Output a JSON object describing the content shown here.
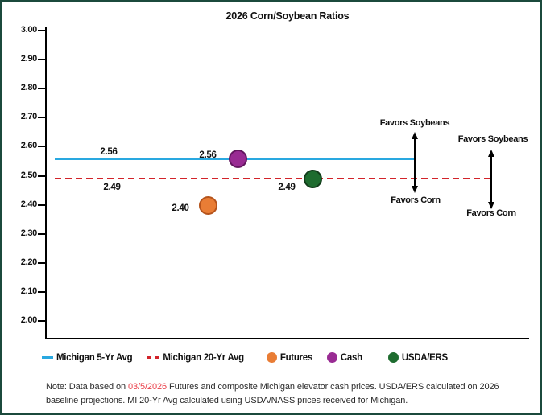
{
  "frame": {
    "border_color": "#1B4A3C",
    "background": "#FFFFFF"
  },
  "chart_data": {
    "type": "scatter",
    "title": "2026 Corn/Soybean Ratios",
    "xlabel": "",
    "ylabel": "",
    "ylim": [
      2.0,
      3.0
    ],
    "ytick_step": 0.1,
    "yticks": [
      "3.00",
      "2.90",
      "2.80",
      "2.70",
      "2.60",
      "2.50",
      "2.40",
      "2.30",
      "2.20",
      "2.10",
      "2.00"
    ],
    "grid": false,
    "legend_position": "bottom",
    "reference_lines": [
      {
        "name": "Michigan 5-Yr Avg",
        "value": 2.56,
        "label": "2.56",
        "style": "solid",
        "color": "#29A8E0"
      },
      {
        "name": "Michigan 20-Yr Avg",
        "value": 2.49,
        "label": "2.49",
        "style": "dashed",
        "color": "#D2232A"
      }
    ],
    "points": [
      {
        "name": "Futures",
        "value": 2.4,
        "label": "2.40",
        "color": "#E97D35",
        "stroke": "#B5531B"
      },
      {
        "name": "Cash",
        "value": 2.56,
        "label": "2.56",
        "color": "#992B93",
        "stroke": "#63165F"
      },
      {
        "name": "USDA/ERS",
        "value": 2.49,
        "label": "2.49",
        "color": "#1E6C2F",
        "stroke": "#123D1B"
      }
    ],
    "annotations": [
      {
        "above": "Favors Soybeans",
        "below": "Favors Corn"
      },
      {
        "above": "Favors Soybeans",
        "below": "Favors Corn"
      }
    ]
  },
  "legend": {
    "items": [
      {
        "label": "Michigan 5-Yr Avg",
        "swatch": "line-solid",
        "color": "#29A8E0"
      },
      {
        "label": "Michigan 20-Yr Avg",
        "swatch": "line-dashed",
        "color": "#D2232A"
      },
      {
        "label": "Futures",
        "swatch": "circle",
        "color": "#E97D35"
      },
      {
        "label": "Cash",
        "swatch": "circle",
        "color": "#992B93"
      },
      {
        "label": "USDA/ERS",
        "swatch": "circle",
        "color": "#1E6C2F"
      }
    ]
  },
  "note": {
    "prefix": "Note: Data based on ",
    "date": "03/5/2026",
    "date_color": "#EA3E48",
    "suffix": " Futures and composite Michigan elevator cash prices. USDA/ERS calculated on 2026 baseline projections. MI 20-Yr Avg calculated using USDA/NASS prices received for Michigan."
  }
}
